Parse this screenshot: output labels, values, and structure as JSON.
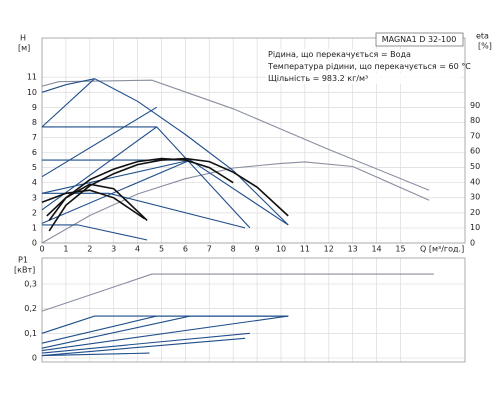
{
  "chart_data": [
    {
      "type": "line",
      "y_label": "H",
      "y_unit": "[м]",
      "y2_label": "eta",
      "y2_unit": "[%]",
      "x_label": "Q [м³/год.]",
      "box_title": "MAGNA1 D 32-100",
      "annotations": [
        "Рідина, що перекачується = Вода",
        "Температура рідини, що перекачується = 60 °C",
        "Щільність = 983.2 кг/м³"
      ],
      "xlim": [
        0,
        17.7
      ],
      "xticks": [
        0,
        1,
        2,
        3,
        4,
        5,
        6,
        7,
        8,
        9,
        10,
        11,
        12,
        13,
        14,
        15
      ],
      "ylim": [
        0,
        13.6
      ],
      "yticks": [
        0,
        1,
        2,
        3,
        4,
        5,
        6,
        7,
        8,
        9,
        10,
        11
      ],
      "y2lim": [
        0,
        134
      ],
      "y2ticks": [
        0,
        10,
        20,
        30,
        40,
        50,
        60,
        70,
        80,
        90
      ],
      "grid": true,
      "series": [
        {
          "color": "#8a8fa0",
          "x": [
            0,
            0.7,
            4.6,
            8,
            12,
            16.2
          ],
          "values": [
            10.4,
            10.7,
            10.8,
            8.9,
            6.2,
            3.5
          ]
        },
        {
          "color": "#8a8fa0",
          "axis": "y2",
          "x": [
            0,
            2,
            4,
            6,
            8,
            10,
            11,
            13,
            16.2
          ],
          "values": [
            0,
            18,
            32,
            42,
            49,
            52,
            53,
            50,
            28
          ]
        },
        {
          "color": "#1f4e8c",
          "x": [
            0,
            1,
            2.2,
            4,
            6,
            8,
            10.3
          ],
          "values": [
            10.0,
            10.5,
            10.9,
            9.4,
            7.2,
            4.8,
            1.2
          ]
        },
        {
          "color": "#1f4e8c",
          "x": [
            0,
            4.8,
            8.7
          ],
          "values": [
            7.7,
            7.7,
            1.0
          ]
        },
        {
          "color": "#1f4e8c",
          "x": [
            0,
            4.8
          ],
          "values": [
            4.4,
            9.0
          ]
        },
        {
          "color": "#1f4e8c",
          "x": [
            0,
            2.2
          ],
          "values": [
            7.7,
            10.9
          ]
        },
        {
          "color": "#1f4e8c",
          "x": [
            0,
            6.2,
            10.3
          ],
          "values": [
            5.5,
            5.5,
            1.2
          ]
        },
        {
          "color": "#1f4e8c",
          "x": [
            0,
            6.2
          ],
          "values": [
            3.3,
            5.5
          ]
        },
        {
          "color": "#1f4e8c",
          "x": [
            0,
            4.8
          ],
          "values": [
            2.2,
            7.7
          ]
        },
        {
          "color": "#1f4e8c",
          "x": [
            0,
            2.8,
            8.5
          ],
          "values": [
            3.3,
            3.3,
            1.0
          ]
        },
        {
          "color": "#1f4e8c",
          "x": [
            0,
            6.2
          ],
          "values": [
            1.3,
            5.5
          ]
        },
        {
          "color": "#1f4e8c",
          "x": [
            0,
            1.5,
            4.4
          ],
          "values": [
            1.2,
            1.2,
            0.2
          ]
        },
        {
          "color": "#111111",
          "x": [
            0.3,
            1,
            2,
            3,
            4,
            5,
            6,
            7,
            8,
            9,
            10.3
          ],
          "values": [
            0.8,
            2.5,
            3.8,
            4.6,
            5.2,
            5.5,
            5.6,
            5.4,
            4.7,
            3.7,
            1.8
          ]
        },
        {
          "color": "#111111",
          "x": [
            0.3,
            1,
            2,
            3,
            4,
            5,
            6,
            7,
            8
          ],
          "values": [
            1.5,
            3.0,
            4.2,
            4.9,
            5.4,
            5.6,
            5.5,
            5.0,
            4.0
          ]
        },
        {
          "color": "#111111",
          "x": [
            0.2,
            1,
            2,
            3,
            4.4
          ],
          "values": [
            1.8,
            3.0,
            3.9,
            3.6,
            1.5
          ]
        },
        {
          "color": "#111111",
          "x": [
            0,
            1,
            2,
            3,
            4.3
          ],
          "values": [
            2.7,
            3.3,
            3.5,
            3.0,
            1.6
          ]
        }
      ]
    },
    {
      "type": "line",
      "y_label": "P1",
      "y_unit": "[кВт]",
      "xlim": [
        0,
        17.7
      ],
      "xgrid": [
        0,
        1,
        2,
        3,
        4,
        5,
        6,
        7,
        8,
        9,
        10,
        11,
        12,
        13,
        14,
        15
      ],
      "ylim": [
        -0.016,
        0.405
      ],
      "yticks": [
        0,
        {
          "value": 0.1,
          "label": "0,1"
        },
        {
          "value": 0.2,
          "label": "0,2"
        },
        {
          "value": 0.3,
          "label": "0,3"
        }
      ],
      "grid": true,
      "series": [
        {
          "color": "#8a8fa0",
          "x": [
            0,
            4.6,
            16.4
          ],
          "values": [
            0.19,
            0.34,
            0.34
          ]
        },
        {
          "color": "#1f4e8c",
          "x": [
            0,
            2.2,
            10.3
          ],
          "values": [
            0.1,
            0.17,
            0.17
          ]
        },
        {
          "color": "#1f4e8c",
          "x": [
            0,
            4.8,
            10.3
          ],
          "values": [
            0.06,
            0.17,
            0.17
          ]
        },
        {
          "color": "#1f4e8c",
          "x": [
            0,
            6.2,
            10.3
          ],
          "values": [
            0.04,
            0.17,
            0.17
          ]
        },
        {
          "color": "#1f4e8c",
          "x": [
            0,
            10.3
          ],
          "values": [
            0.03,
            0.17
          ]
        },
        {
          "color": "#1f4e8c",
          "x": [
            0,
            8.7
          ],
          "values": [
            0.02,
            0.1
          ]
        },
        {
          "color": "#1f4e8c",
          "x": [
            0,
            8.5
          ],
          "values": [
            0.01,
            0.08
          ]
        },
        {
          "color": "#1f4e8c",
          "x": [
            0,
            4.5
          ],
          "values": [
            0.01,
            0.02
          ]
        }
      ]
    }
  ]
}
